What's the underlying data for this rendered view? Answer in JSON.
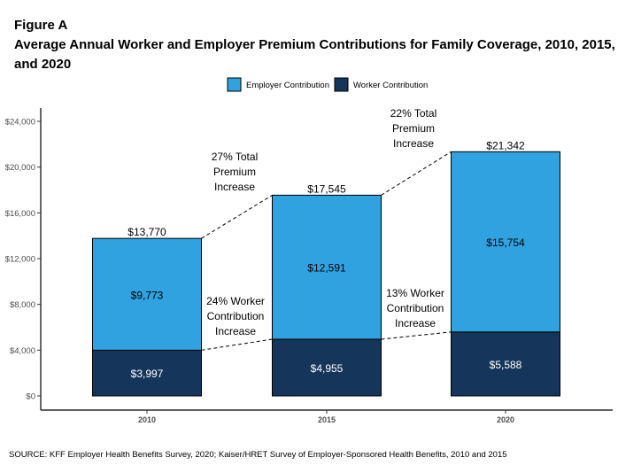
{
  "figure_label": "Figure A",
  "chart_data": {
    "type": "bar",
    "stacked": true,
    "title": "Average Annual Worker and Employer Premium Contributions for Family Coverage, 2010, 2015, and 2020",
    "categories": [
      "2010",
      "2015",
      "2020"
    ],
    "series": [
      {
        "name": "Worker Contribution",
        "values": [
          3997,
          4955,
          5588
        ],
        "labels": [
          "$3,997",
          "$4,955",
          "$5,588"
        ],
        "color": "#15355a"
      },
      {
        "name": "Employer Contribution",
        "values": [
          9773,
          12591,
          15754
        ],
        "labels": [
          "$9,773",
          "$12,591",
          "$15,754"
        ],
        "color": "#30a2e0"
      }
    ],
    "totals": [
      13770,
      17545,
      21342
    ],
    "total_labels": [
      "$13,770",
      "$17,545",
      "$21,342"
    ],
    "ylim": [
      0,
      24000
    ],
    "yticks": [
      0,
      4000,
      8000,
      12000,
      16000,
      20000,
      24000
    ],
    "ytick_labels": [
      "$0",
      "$4,000",
      "$8,000",
      "$12,000",
      "$16,000",
      "$20,000",
      "$24,000"
    ],
    "legend_position": "top",
    "legend": [
      "Employer Contribution",
      "Worker Contribution"
    ],
    "grid": false,
    "annotations": [
      {
        "lines": [
          "27% Total",
          "Premium",
          "Increase"
        ]
      },
      {
        "lines": [
          "22% Total",
          "Premium",
          "Increase"
        ]
      },
      {
        "lines": [
          "24% Worker",
          "Contribution",
          "Increase"
        ]
      },
      {
        "lines": [
          "13% Worker",
          "Contribution",
          "Increase"
        ]
      }
    ]
  },
  "source": "SOURCE: KFF Employer Health Benefits Survey, 2020; Kaiser/HRET Survey of Employer-Sponsored Health Benefits, 2010 and 2015"
}
